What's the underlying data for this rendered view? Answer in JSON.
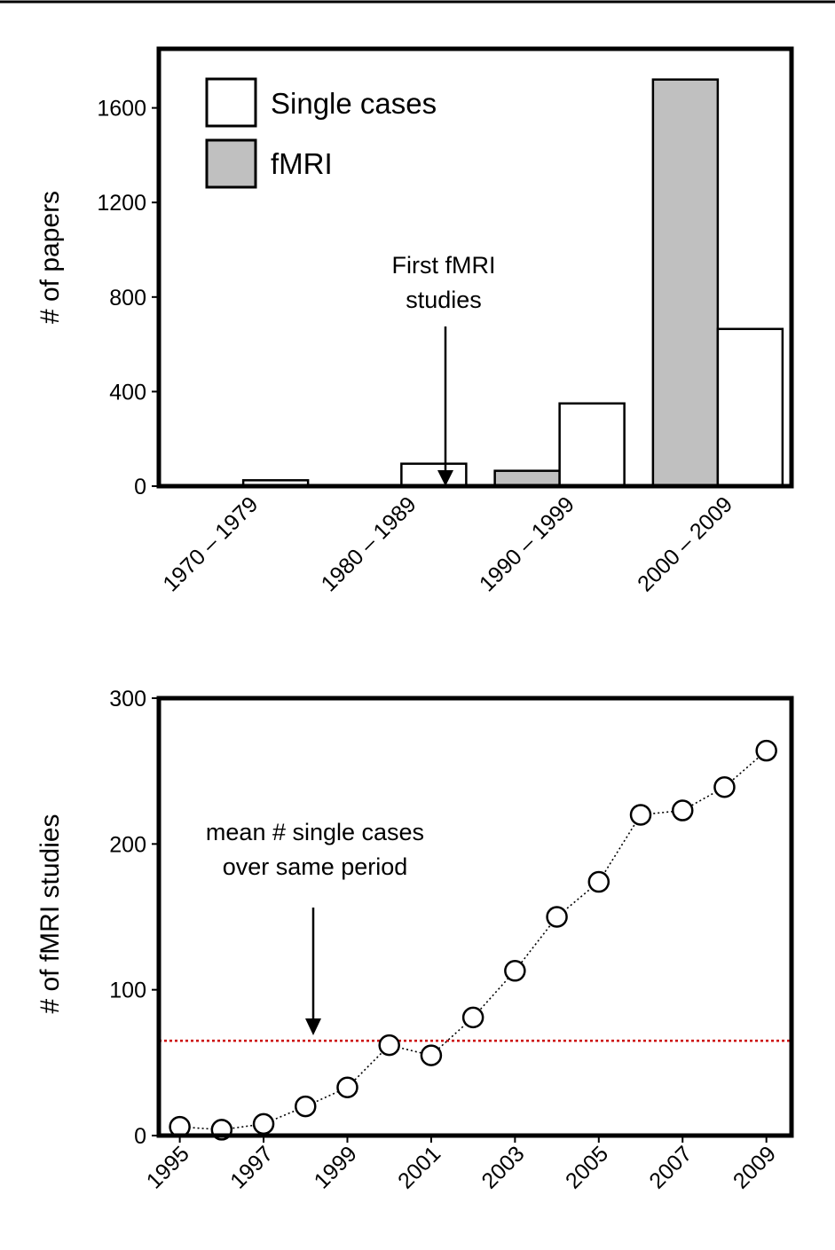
{
  "chart_data": [
    {
      "type": "bar",
      "title": "",
      "xlabel": "",
      "ylabel": "# of papers",
      "ylim": [
        0,
        1850
      ],
      "yticks": [
        0,
        400,
        800,
        1200,
        1600
      ],
      "categories": [
        "1970 – 1979",
        "1980 – 1989",
        "1990 – 1999",
        "2000 – 2009"
      ],
      "series": [
        {
          "name": "fMRI",
          "values": [
            0,
            0,
            65,
            1720
          ],
          "color": "#c0c0c0"
        },
        {
          "name": "Single cases",
          "values": [
            25,
            95,
            350,
            665
          ],
          "color": "#ffffff"
        }
      ],
      "legend": [
        "Single cases",
        "fMRI"
      ],
      "legend_position": "top-left",
      "annotation": {
        "lines": [
          "First fMRI",
          "studies"
        ]
      },
      "grid": false
    },
    {
      "type": "line",
      "title": "",
      "xlabel": "",
      "ylabel": "# of fMRI studies",
      "ylim": [
        0,
        300
      ],
      "yticks": [
        0,
        100,
        200,
        300
      ],
      "xlim": [
        1994.5,
        2009.6
      ],
      "xticks": [
        "1995",
        "1997",
        "1999",
        "2001",
        "2003",
        "2005",
        "2007",
        "2009"
      ],
      "x": [
        1995,
        1996,
        1997,
        1998,
        1999,
        2000,
        2001,
        2002,
        2003,
        2004,
        2005,
        2006,
        2007,
        2008,
        2009
      ],
      "values": [
        6,
        4,
        8,
        20,
        33,
        62,
        55,
        81,
        113,
        150,
        174,
        220,
        223,
        239,
        264
      ],
      "reference_line": {
        "value": 65,
        "color": "#cc0000",
        "style": "dotted"
      },
      "annotation": {
        "lines": [
          "mean # single cases",
          "over same period"
        ]
      },
      "grid": false
    }
  ]
}
